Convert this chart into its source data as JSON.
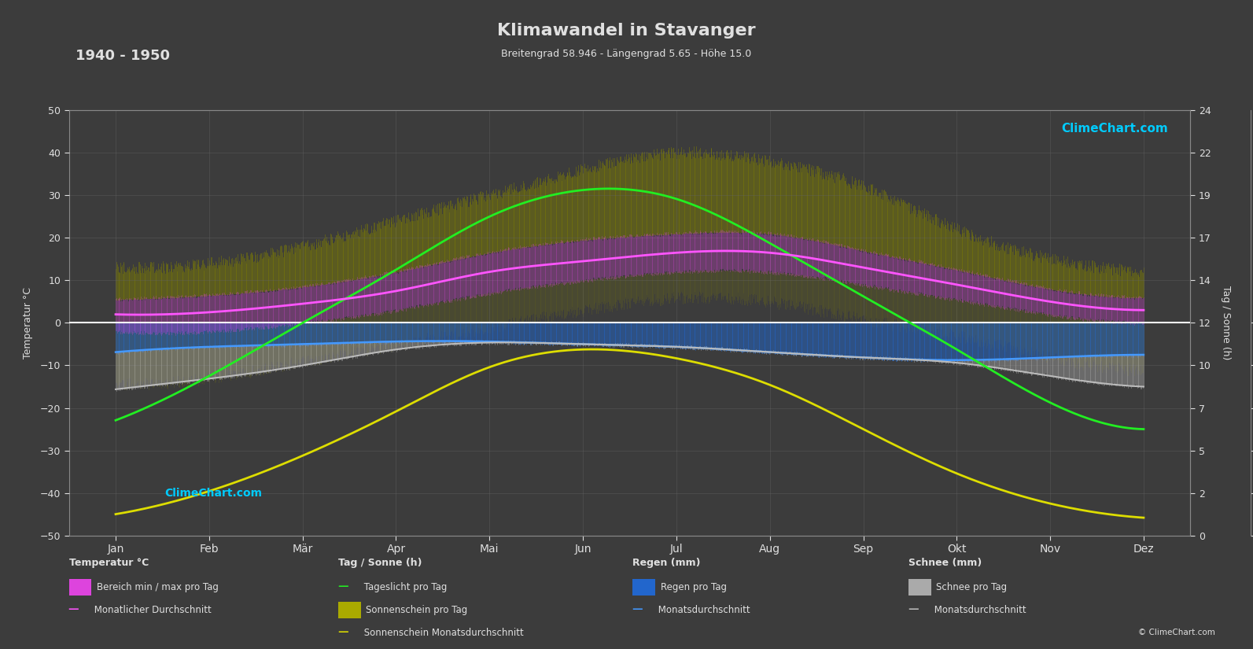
{
  "title": "Klimawandel in Stavanger",
  "subtitle": "Breitengrad 58.946 - Längengrad 5.65 - Höhe 15.0",
  "year_range": "1940 - 1950",
  "months": [
    "Jan",
    "Feb",
    "Mär",
    "Apr",
    "Mai",
    "Jun",
    "Jul",
    "Aug",
    "Sep",
    "Okt",
    "Nov",
    "Dez"
  ],
  "bg_color": "#3c3c3c",
  "grid_color": "#666666",
  "text_color": "#e0e0e0",
  "temp_ylim": [
    -50,
    50
  ],
  "sun_ylim": [
    0,
    24
  ],
  "rain_ylim_mm": [
    0,
    40
  ],
  "temp_max_daily": [
    5.5,
    6.5,
    8.5,
    12.0,
    16.5,
    19.5,
    21.0,
    21.0,
    17.0,
    12.5,
    8.0,
    6.0
  ],
  "temp_min_daily": [
    -2.0,
    -2.0,
    0.0,
    3.0,
    7.0,
    10.0,
    12.0,
    12.0,
    9.0,
    5.5,
    2.0,
    0.0
  ],
  "temp_max_extreme": [
    13.0,
    14.0,
    18.0,
    24.0,
    30.0,
    36.0,
    40.0,
    38.0,
    32.0,
    22.0,
    15.0,
    12.0
  ],
  "temp_min_extreme": [
    -14.0,
    -13.0,
    -9.0,
    -5.0,
    -1.0,
    3.0,
    6.0,
    5.0,
    1.0,
    -3.0,
    -8.0,
    -11.0
  ],
  "temp_avg_monthly": [
    2.0,
    2.5,
    4.5,
    7.5,
    12.0,
    14.5,
    16.5,
    16.5,
    13.0,
    9.0,
    5.0,
    3.0
  ],
  "daylight_hours": [
    6.5,
    9.0,
    12.0,
    15.0,
    18.0,
    19.5,
    19.0,
    16.5,
    13.5,
    10.5,
    7.5,
    6.0
  ],
  "sunshine_hours": [
    1.2,
    2.5,
    4.5,
    7.0,
    9.5,
    10.5,
    10.0,
    8.5,
    6.0,
    3.5,
    1.8,
    1.0
  ],
  "rain_mm_daily": [
    5.5,
    4.5,
    4.0,
    3.5,
    3.5,
    4.0,
    4.5,
    5.5,
    6.5,
    7.0,
    6.5,
    6.0
  ],
  "rain_avg_mm": [
    5.5,
    4.5,
    4.0,
    3.5,
    3.5,
    4.0,
    4.5,
    5.5,
    6.5,
    7.0,
    6.5,
    6.0
  ],
  "snow_mm_daily": [
    7.0,
    6.0,
    4.0,
    1.5,
    0.2,
    0.0,
    0.0,
    0.0,
    0.0,
    0.5,
    3.5,
    6.0
  ],
  "snow_avg_mm": [
    7.0,
    6.0,
    4.0,
    1.5,
    0.2,
    0.0,
    0.0,
    0.0,
    0.0,
    0.5,
    3.5,
    6.0
  ]
}
